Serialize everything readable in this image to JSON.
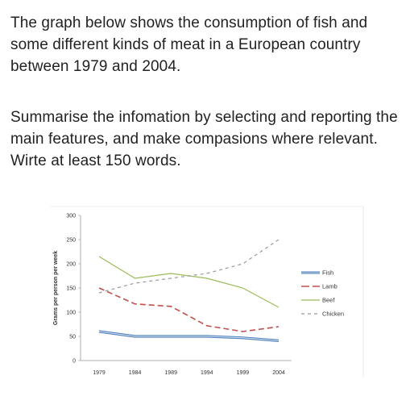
{
  "intro_text": "The graph below shows the consumption of fish and some different kinds of meat in a European country between 1979 and 2004.",
  "task_text": "Summarise the infomation by selecting and reporting the main features, and make compasions where relevant. Wirte at least 150 words.",
  "chart_data": {
    "type": "line",
    "title": "",
    "xlabel": "",
    "ylabel": "Grams per person per week",
    "x": [
      "1979",
      "1984",
      "1989",
      "1994",
      "1999",
      "2004"
    ],
    "y_ticks": [
      "0",
      "50",
      "100",
      "150",
      "200",
      "250",
      "300"
    ],
    "ylim": [
      0,
      300
    ],
    "grid": false,
    "legend_position": "right",
    "series": [
      {
        "name": "Fish",
        "values": [
          60,
          50,
          50,
          50,
          47,
          41
        ],
        "color": "#4f81bd",
        "style": "double-solid"
      },
      {
        "name": "Lamb",
        "values": [
          150,
          117,
          112,
          72,
          60,
          70
        ],
        "color": "#c0504d",
        "style": "long-dash"
      },
      {
        "name": "Beef",
        "values": [
          215,
          170,
          180,
          170,
          150,
          110
        ],
        "color": "#9bbb59",
        "style": "solid"
      },
      {
        "name": "Chicken",
        "values": [
          140,
          160,
          170,
          180,
          200,
          250
        ],
        "color": "#999999",
        "style": "short-dash"
      }
    ]
  }
}
